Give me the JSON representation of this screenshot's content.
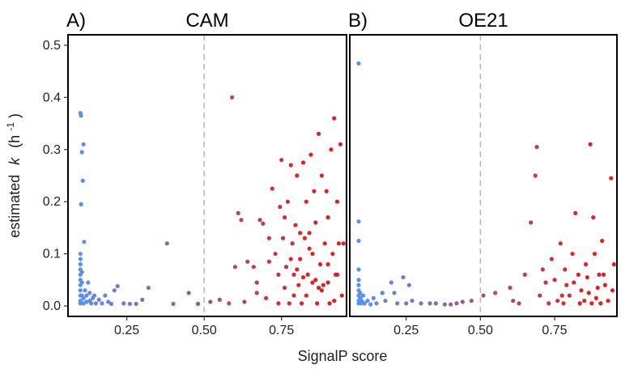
{
  "chart_data": {
    "type": "scatter",
    "xlabel": "SignalP score",
    "ylabel_prefix": "estimated",
    "ylabel_symbol": "k",
    "ylabel_unit_base": "(h",
    "ylabel_unit_exp": "-1",
    "ylabel_unit_close": ")",
    "xlim": [
      0.06,
      0.96
    ],
    "ylim": [
      -0.02,
      0.52
    ],
    "xticks": [
      0.25,
      0.5,
      0.75
    ],
    "xtick_labels": [
      "0.25",
      "0.50",
      "0.75"
    ],
    "yticks": [
      0.0,
      0.1,
      0.2,
      0.3,
      0.4,
      0.5
    ],
    "ytick_labels": [
      "0.0",
      "0.1",
      "0.2",
      "0.3",
      "0.4",
      "0.5"
    ],
    "reference_line_x": 0.5,
    "color_low": "#5b8ff0",
    "color_high": "#e02020",
    "grid": false,
    "panels": [
      {
        "label": "A)",
        "title": "CAM",
        "points": [
          [
            0.1,
            0.37
          ],
          [
            0.102,
            0.365
          ],
          [
            0.105,
            0.295
          ],
          [
            0.11,
            0.31
          ],
          [
            0.108,
            0.24
          ],
          [
            0.102,
            0.195
          ],
          [
            0.112,
            0.123
          ],
          [
            0.1,
            0.1
          ],
          [
            0.1,
            0.09
          ],
          [
            0.1,
            0.08
          ],
          [
            0.1,
            0.07
          ],
          [
            0.1,
            0.06
          ],
          [
            0.1,
            0.05
          ],
          [
            0.1,
            0.04
          ],
          [
            0.1,
            0.03
          ],
          [
            0.1,
            0.02
          ],
          [
            0.1,
            0.01
          ],
          [
            0.1,
            0.005
          ],
          [
            0.105,
            0.065
          ],
          [
            0.105,
            0.045
          ],
          [
            0.105,
            0.02
          ],
          [
            0.11,
            0.015
          ],
          [
            0.11,
            0.005
          ],
          [
            0.115,
            0.03
          ],
          [
            0.12,
            0.02
          ],
          [
            0.12,
            0.008
          ],
          [
            0.125,
            0.045
          ],
          [
            0.13,
            0.025
          ],
          [
            0.13,
            0.01
          ],
          [
            0.135,
            0.005
          ],
          [
            0.14,
            0.015
          ],
          [
            0.145,
            0.02
          ],
          [
            0.15,
            0.005
          ],
          [
            0.16,
            0.012
          ],
          [
            0.17,
            0.005
          ],
          [
            0.18,
            0.02
          ],
          [
            0.19,
            0.008
          ],
          [
            0.2,
            0.004
          ],
          [
            0.21,
            0.03
          ],
          [
            0.22,
            0.038
          ],
          [
            0.24,
            0.005
          ],
          [
            0.26,
            0.004
          ],
          [
            0.28,
            0.004
          ],
          [
            0.3,
            0.012
          ],
          [
            0.32,
            0.035
          ],
          [
            0.38,
            0.12
          ],
          [
            0.4,
            0.004
          ],
          [
            0.45,
            0.025
          ],
          [
            0.48,
            0.004
          ],
          [
            0.52,
            0.008
          ],
          [
            0.55,
            0.012
          ],
          [
            0.58,
            0.005
          ],
          [
            0.59,
            0.4
          ],
          [
            0.6,
            0.075
          ],
          [
            0.61,
            0.178
          ],
          [
            0.62,
            0.165
          ],
          [
            0.63,
            0.008
          ],
          [
            0.64,
            0.085
          ],
          [
            0.66,
            0.075
          ],
          [
            0.67,
            0.045
          ],
          [
            0.68,
            0.165
          ],
          [
            0.69,
            0.158
          ],
          [
            0.7,
            0.015
          ],
          [
            0.71,
            0.085
          ],
          [
            0.72,
            0.225
          ],
          [
            0.73,
            0.1
          ],
          [
            0.74,
            0.06
          ],
          [
            0.745,
            0.19
          ],
          [
            0.75,
            0.28
          ],
          [
            0.755,
            0.13
          ],
          [
            0.76,
            0.035
          ],
          [
            0.765,
            0.075
          ],
          [
            0.77,
            0.2
          ],
          [
            0.775,
            0.005
          ],
          [
            0.78,
            0.27
          ],
          [
            0.785,
            0.12
          ],
          [
            0.79,
            0.06
          ],
          [
            0.795,
            0.155
          ],
          [
            0.8,
            0.25
          ],
          [
            0.805,
            0.04
          ],
          [
            0.81,
            0.09
          ],
          [
            0.815,
            0.005
          ],
          [
            0.82,
            0.275
          ],
          [
            0.825,
            0.13
          ],
          [
            0.83,
            0.2
          ],
          [
            0.835,
            0.06
          ],
          [
            0.84,
            0.11
          ],
          [
            0.845,
            0.29
          ],
          [
            0.85,
            0.045
          ],
          [
            0.855,
            0.22
          ],
          [
            0.86,
            0.16
          ],
          [
            0.865,
            0.005
          ],
          [
            0.87,
            0.33
          ],
          [
            0.875,
            0.08
          ],
          [
            0.88,
            0.25
          ],
          [
            0.885,
            0.04
          ],
          [
            0.89,
            0.12
          ],
          [
            0.895,
            0.22
          ],
          [
            0.9,
            0.17
          ],
          [
            0.905,
            0.005
          ],
          [
            0.91,
            0.3
          ],
          [
            0.915,
            0.1
          ],
          [
            0.92,
            0.36
          ],
          [
            0.925,
            0.06
          ],
          [
            0.93,
            0.2
          ],
          [
            0.935,
            0.12
          ],
          [
            0.94,
            0.31
          ],
          [
            0.945,
            0.02
          ],
          [
            0.95,
            0.12
          ],
          [
            0.78,
            0.09
          ],
          [
            0.8,
            0.07
          ],
          [
            0.83,
            0.02
          ],
          [
            0.86,
            0.05
          ],
          [
            0.88,
            0.03
          ],
          [
            0.9,
            0.08
          ],
          [
            0.92,
            0.01
          ],
          [
            0.84,
            0.14
          ],
          [
            0.76,
            0.17
          ],
          [
            0.82,
            0.055
          ],
          [
            0.87,
            0.035
          ],
          [
            0.9,
            0.045
          ],
          [
            0.85,
            0.1
          ],
          [
            0.93,
            0.06
          ],
          [
            0.79,
            0.02
          ],
          [
            0.81,
            0.14
          ],
          [
            0.74,
            0.005
          ],
          [
            0.71,
            0.13
          ],
          [
            0.67,
            0.025
          ]
        ]
      },
      {
        "label": "B)",
        "title": "OE21",
        "points": [
          [
            0.09,
            0.465
          ],
          [
            0.09,
            0.162
          ],
          [
            0.09,
            0.125
          ],
          [
            0.09,
            0.07
          ],
          [
            0.09,
            0.05
          ],
          [
            0.09,
            0.04
          ],
          [
            0.09,
            0.03
          ],
          [
            0.09,
            0.02
          ],
          [
            0.09,
            0.01
          ],
          [
            0.09,
            0.005
          ],
          [
            0.095,
            0.025
          ],
          [
            0.095,
            0.015
          ],
          [
            0.1,
            0.01
          ],
          [
            0.1,
            0.005
          ],
          [
            0.105,
            0.02
          ],
          [
            0.11,
            0.005
          ],
          [
            0.12,
            0.01
          ],
          [
            0.13,
            0.003
          ],
          [
            0.14,
            0.015
          ],
          [
            0.15,
            0.005
          ],
          [
            0.17,
            0.025
          ],
          [
            0.18,
            0.01
          ],
          [
            0.2,
            0.045
          ],
          [
            0.21,
            0.025
          ],
          [
            0.22,
            0.005
          ],
          [
            0.24,
            0.055
          ],
          [
            0.25,
            0.005
          ],
          [
            0.26,
            0.04
          ],
          [
            0.27,
            0.01
          ],
          [
            0.3,
            0.005
          ],
          [
            0.33,
            0.005
          ],
          [
            0.35,
            0.005
          ],
          [
            0.38,
            0.003
          ],
          [
            0.4,
            0.003
          ],
          [
            0.42,
            0.005
          ],
          [
            0.44,
            0.008
          ],
          [
            0.47,
            0.01
          ],
          [
            0.51,
            0.02
          ],
          [
            0.55,
            0.025
          ],
          [
            0.6,
            0.035
          ],
          [
            0.61,
            0.01
          ],
          [
            0.63,
            0.005
          ],
          [
            0.65,
            0.06
          ],
          [
            0.67,
            0.16
          ],
          [
            0.685,
            0.25
          ],
          [
            0.69,
            0.305
          ],
          [
            0.7,
            0.02
          ],
          [
            0.71,
            0.07
          ],
          [
            0.72,
            0.045
          ],
          [
            0.73,
            0.005
          ],
          [
            0.74,
            0.09
          ],
          [
            0.75,
            0.05
          ],
          [
            0.76,
            0.01
          ],
          [
            0.77,
            0.12
          ],
          [
            0.78,
            0.005
          ],
          [
            0.785,
            0.07
          ],
          [
            0.79,
            0.04
          ],
          [
            0.8,
            0.02
          ],
          [
            0.81,
            0.1
          ],
          [
            0.82,
            0.178
          ],
          [
            0.83,
            0.06
          ],
          [
            0.84,
            0.03
          ],
          [
            0.85,
            0.01
          ],
          [
            0.86,
            0.055
          ],
          [
            0.87,
            0.31
          ],
          [
            0.875,
            0.005
          ],
          [
            0.88,
            0.17
          ],
          [
            0.885,
            0.1
          ],
          [
            0.89,
            0.015
          ],
          [
            0.9,
            0.06
          ],
          [
            0.905,
            0.005
          ],
          [
            0.91,
            0.125
          ],
          [
            0.92,
            0.04
          ],
          [
            0.93,
            0.01
          ],
          [
            0.94,
            0.245
          ],
          [
            0.945,
            0.03
          ],
          [
            0.95,
            0.08
          ],
          [
            0.815,
            0.045
          ],
          [
            0.835,
            0.005
          ],
          [
            0.865,
            0.025
          ],
          [
            0.895,
            0.035
          ],
          [
            0.915,
            0.06
          ],
          [
            0.775,
            0.02
          ],
          [
            0.855,
            0.08
          ]
        ]
      }
    ]
  }
}
